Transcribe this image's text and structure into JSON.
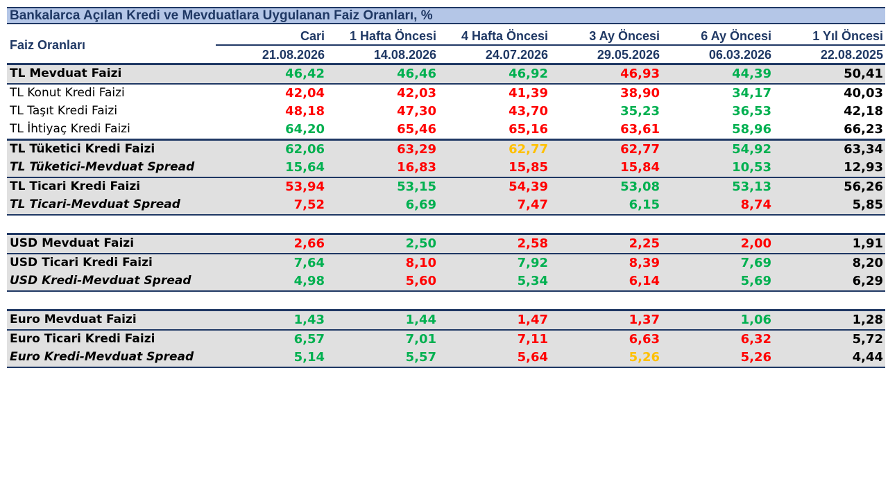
{
  "title": "Bankalarca Açılan Kredi ve Mevduatlara Uygulanan Faiz Oranları, %",
  "header": {
    "label": "Faiz Oranları",
    "columns": [
      {
        "name": "Cari",
        "date": "21.08.2026"
      },
      {
        "name": "1 Hafta Öncesi",
        "date": "14.08.2026"
      },
      {
        "name": "4 Hafta Öncesi",
        "date": "24.07.2026"
      },
      {
        "name": "3 Ay Öncesi",
        "date": "29.05.2026"
      },
      {
        "name": "6 Ay Öncesi",
        "date": "06.03.2026"
      },
      {
        "name": "1 Yıl Öncesi",
        "date": "22.08.2025"
      }
    ]
  },
  "colors": {
    "green": "#00b050",
    "red": "#ff0000",
    "orange": "#ffc000",
    "black": "#000000",
    "navy": "#1f3864",
    "title_bg": "#b4c6e7",
    "shade": "#e0e0e0"
  },
  "rows": [
    {
      "label": "TL Mevduat Faizi",
      "values": [
        "46,42",
        "46,46",
        "46,92",
        "46,93",
        "44,39",
        "50,41"
      ],
      "colors": [
        "green",
        "green",
        "green",
        "red",
        "green",
        "black"
      ]
    },
    {
      "label": "TL Konut Kredi Faizi",
      "values": [
        "42,04",
        "42,03",
        "41,39",
        "38,90",
        "34,17",
        "40,03"
      ],
      "colors": [
        "red",
        "red",
        "red",
        "red",
        "green",
        "black"
      ]
    },
    {
      "label": "TL Taşıt Kredi Faizi",
      "values": [
        "48,18",
        "47,30",
        "43,70",
        "35,23",
        "36,53",
        "42,18"
      ],
      "colors": [
        "red",
        "red",
        "red",
        "green",
        "green",
        "black"
      ]
    },
    {
      "label": "TL İhtiyaç Kredi Faizi",
      "values": [
        "64,20",
        "65,46",
        "65,16",
        "63,61",
        "58,96",
        "66,23"
      ],
      "colors": [
        "green",
        "red",
        "red",
        "red",
        "green",
        "black"
      ]
    },
    {
      "label": "TL Tüketici Kredi Faizi",
      "values": [
        "62,06",
        "63,29",
        "62,77",
        "62,77",
        "54,92",
        "63,34"
      ],
      "colors": [
        "green",
        "red",
        "orange",
        "red",
        "green",
        "black"
      ]
    },
    {
      "label": "TL Tüketici-Mevduat Spread",
      "values": [
        "15,64",
        "16,83",
        "15,85",
        "15,84",
        "10,53",
        "12,93"
      ],
      "colors": [
        "green",
        "red",
        "red",
        "red",
        "green",
        "black"
      ]
    },
    {
      "label": "TL Ticari Kredi Faizi",
      "values": [
        "53,94",
        "53,15",
        "54,39",
        "53,08",
        "53,13",
        "56,26"
      ],
      "colors": [
        "red",
        "green",
        "red",
        "green",
        "green",
        "black"
      ]
    },
    {
      "label": "TL Ticari-Mevduat Spread",
      "values": [
        "7,52",
        "6,69",
        "7,47",
        "6,15",
        "8,74",
        "5,85"
      ],
      "colors": [
        "red",
        "green",
        "red",
        "green",
        "red",
        "black"
      ]
    },
    {
      "label": "USD Mevduat Faizi",
      "values": [
        "2,66",
        "2,50",
        "2,58",
        "2,25",
        "2,00",
        "1,91"
      ],
      "colors": [
        "red",
        "green",
        "red",
        "red",
        "red",
        "black"
      ]
    },
    {
      "label": "USD Ticari Kredi Faizi",
      "values": [
        "7,64",
        "8,10",
        "7,92",
        "8,39",
        "7,69",
        "8,20"
      ],
      "colors": [
        "green",
        "red",
        "green",
        "red",
        "green",
        "black"
      ]
    },
    {
      "label": "USD Kredi-Mevduat Spread",
      "values": [
        "4,98",
        "5,60",
        "5,34",
        "6,14",
        "5,69",
        "6,29"
      ],
      "colors": [
        "green",
        "red",
        "green",
        "red",
        "green",
        "black"
      ]
    },
    {
      "label": "Euro Mevduat Faizi",
      "values": [
        "1,43",
        "1,44",
        "1,47",
        "1,37",
        "1,06",
        "1,28"
      ],
      "colors": [
        "green",
        "green",
        "red",
        "red",
        "green",
        "black"
      ]
    },
    {
      "label": "Euro Ticari Kredi Faizi",
      "values": [
        "6,57",
        "7,01",
        "7,11",
        "6,63",
        "6,32",
        "5,72"
      ],
      "colors": [
        "green",
        "green",
        "red",
        "red",
        "red",
        "black"
      ]
    },
    {
      "label": "Euro Kredi-Mevduat Spread",
      "values": [
        "5,14",
        "5,57",
        "5,64",
        "5,26",
        "5,26",
        "4,44"
      ],
      "colors": [
        "green",
        "green",
        "red",
        "orange",
        "red",
        "black"
      ]
    }
  ]
}
